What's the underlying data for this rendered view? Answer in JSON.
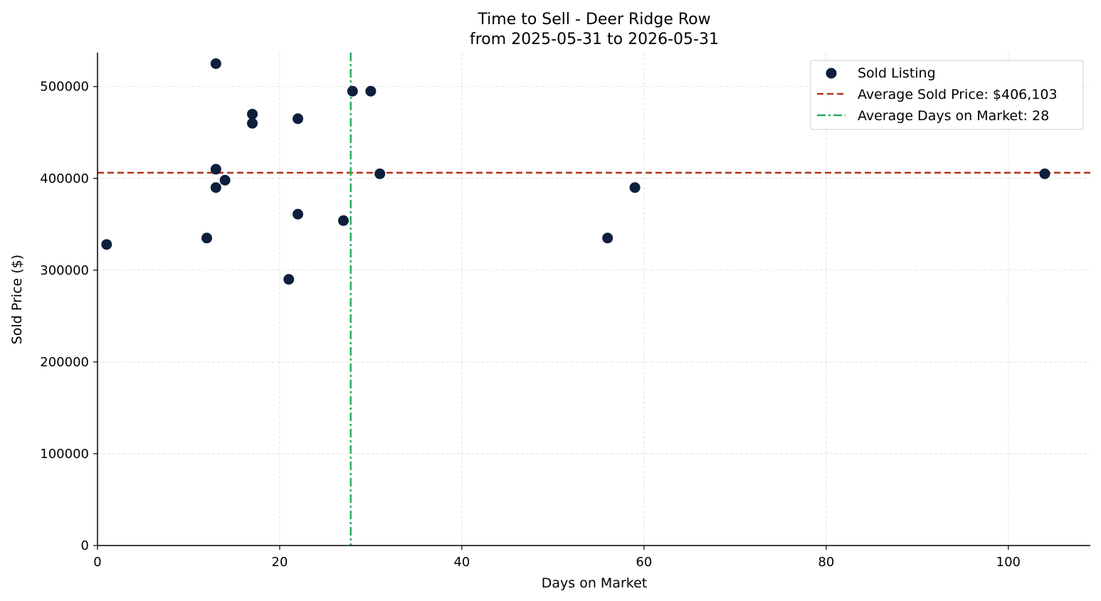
{
  "chart_data": {
    "type": "scatter",
    "title_line1": "Time to Sell - Deer Ridge Row",
    "title_line2": "from 2025-05-31 to 2026-05-31",
    "xlabel": "Days on Market",
    "ylabel": "Sold Price ($)",
    "xlim": [
      0,
      109
    ],
    "ylim": [
      0,
      537000
    ],
    "x_ticks": [
      0,
      20,
      40,
      60,
      80,
      100
    ],
    "y_ticks": [
      0,
      100000,
      200000,
      300000,
      400000,
      500000
    ],
    "grid": true,
    "legend_position": "top-right",
    "series": [
      {
        "name": "Sold Listing",
        "color": "#0d1f3c",
        "points": [
          {
            "x": 1,
            "y": 328000
          },
          {
            "x": 12,
            "y": 335000
          },
          {
            "x": 13,
            "y": 525000
          },
          {
            "x": 13,
            "y": 410000
          },
          {
            "x": 13,
            "y": 390000
          },
          {
            "x": 14,
            "y": 398000
          },
          {
            "x": 17,
            "y": 470000
          },
          {
            "x": 17,
            "y": 460000
          },
          {
            "x": 21,
            "y": 290000
          },
          {
            "x": 22,
            "y": 465000
          },
          {
            "x": 22,
            "y": 361000
          },
          {
            "x": 27,
            "y": 354000
          },
          {
            "x": 28,
            "y": 495000
          },
          {
            "x": 30,
            "y": 495000
          },
          {
            "x": 31,
            "y": 405000
          },
          {
            "x": 56,
            "y": 335000
          },
          {
            "x": 59,
            "y": 390000
          },
          {
            "x": 104,
            "y": 405000
          }
        ]
      }
    ],
    "reference_lines": [
      {
        "name": "Average Sold Price: $406,103",
        "orientation": "horizontal",
        "value": 406103,
        "color": "#b5321c",
        "style": "dashed"
      },
      {
        "name": "Average Days on Market: 28",
        "orientation": "vertical",
        "value": 27.8,
        "color": "#27ae60",
        "style": "dashdot"
      }
    ]
  }
}
